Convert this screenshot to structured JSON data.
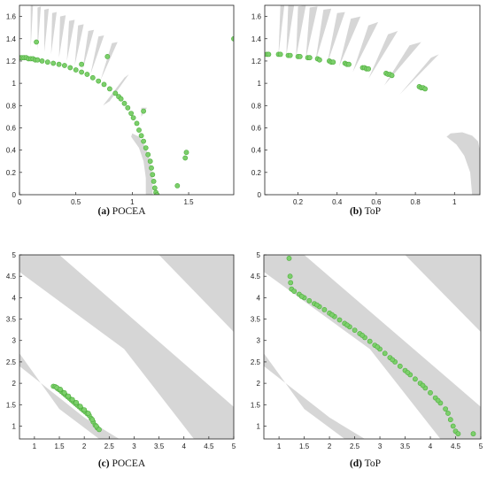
{
  "colors": {
    "feasible_region": "#d6d6d6",
    "points_fill": "#7ccf6b",
    "points_edge": "#4fae3f",
    "axes": "#222222"
  },
  "chart_data": [
    {
      "panel": "a",
      "type": "scatter",
      "caption_label": "(a)",
      "caption_text": "POCEA",
      "xlim": [
        0,
        1.9
      ],
      "ylim": [
        0,
        1.7
      ],
      "xticks": [
        0,
        0.5,
        1,
        1.5
      ],
      "xtick_labels": [
        "0",
        "0.5",
        "1",
        "1.5"
      ],
      "yticks": [
        0,
        0.2,
        0.4,
        0.6,
        0.8,
        1,
        1.2,
        1.4,
        1.6
      ],
      "ytick_labels": [
        "0",
        "0.2",
        "0.4",
        "0.6",
        "0.8",
        "1",
        "1.2",
        "1.4",
        "1.6"
      ],
      "regions": [
        [
          [
            0.1,
            1.7
          ],
          [
            0.12,
            1.7
          ],
          [
            0.1,
            1.32
          ]
        ],
        [
          [
            0.16,
            1.68
          ],
          [
            0.19,
            1.69
          ],
          [
            0.16,
            1.3
          ]
        ],
        [
          [
            0.22,
            1.66
          ],
          [
            0.26,
            1.67
          ],
          [
            0.22,
            1.28
          ]
        ],
        [
          [
            0.29,
            1.63
          ],
          [
            0.33,
            1.64
          ],
          [
            0.28,
            1.26
          ]
        ],
        [
          [
            0.36,
            1.6
          ],
          [
            0.41,
            1.61
          ],
          [
            0.35,
            1.23
          ]
        ],
        [
          [
            0.44,
            1.56
          ],
          [
            0.49,
            1.57
          ],
          [
            0.42,
            1.2
          ]
        ],
        [
          [
            0.52,
            1.52
          ],
          [
            0.57,
            1.53
          ],
          [
            0.49,
            1.16
          ]
        ],
        [
          [
            0.61,
            1.47
          ],
          [
            0.66,
            1.48
          ],
          [
            0.56,
            1.12
          ]
        ],
        [
          [
            0.7,
            1.42
          ],
          [
            0.75,
            1.43
          ],
          [
            0.63,
            1.08
          ]
        ],
        [
          [
            0.82,
            1.36
          ],
          [
            0.87,
            1.37
          ],
          [
            0.72,
            1.03
          ]
        ],
        [
          [
            0.93,
            1.05
          ],
          [
            0.97,
            1.08
          ],
          [
            0.8,
            0.84
          ],
          [
            0.74,
            0.8
          ]
        ],
        [
          [
            1.08,
            0.78
          ],
          [
            1.13,
            0.78
          ],
          [
            1.08,
            0.7
          ]
        ],
        [
          [
            1.0,
            0.55
          ],
          [
            1.06,
            0.52
          ],
          [
            1.12,
            0.42
          ],
          [
            1.16,
            0.3
          ],
          [
            1.18,
            0.15
          ],
          [
            1.18,
            0.0
          ],
          [
            1.12,
            0.0
          ],
          [
            1.12,
            0.15
          ],
          [
            1.1,
            0.3
          ],
          [
            1.06,
            0.42
          ],
          [
            0.99,
            0.52
          ]
        ]
      ],
      "points": [
        [
          0.0,
          1.23
        ],
        [
          0.02,
          1.23
        ],
        [
          0.04,
          1.23
        ],
        [
          0.06,
          1.23
        ],
        [
          0.08,
          1.22
        ],
        [
          0.1,
          1.22
        ],
        [
          0.12,
          1.22
        ],
        [
          0.14,
          1.21
        ],
        [
          0.16,
          1.21
        ],
        [
          0.2,
          1.2
        ],
        [
          0.25,
          1.19
        ],
        [
          0.3,
          1.18
        ],
        [
          0.35,
          1.17
        ],
        [
          0.4,
          1.16
        ],
        [
          0.45,
          1.14
        ],
        [
          0.5,
          1.12
        ],
        [
          0.55,
          1.1
        ],
        [
          0.6,
          1.08
        ],
        [
          0.65,
          1.05
        ],
        [
          0.7,
          1.02
        ],
        [
          0.75,
          0.99
        ],
        [
          0.8,
          0.95
        ],
        [
          0.85,
          0.91
        ],
        [
          0.88,
          0.88
        ],
        [
          0.9,
          0.86
        ],
        [
          0.93,
          0.82
        ],
        [
          0.96,
          0.78
        ],
        [
          0.99,
          0.73
        ],
        [
          1.01,
          0.69
        ],
        [
          1.04,
          0.64
        ],
        [
          1.06,
          0.58
        ],
        [
          1.08,
          0.53
        ],
        [
          1.1,
          0.48
        ],
        [
          1.12,
          0.42
        ],
        [
          1.14,
          0.36
        ],
        [
          1.16,
          0.3
        ],
        [
          1.17,
          0.24
        ],
        [
          1.18,
          0.18
        ],
        [
          1.19,
          0.12
        ],
        [
          1.2,
          0.06
        ],
        [
          1.21,
          0.02
        ],
        [
          1.22,
          0.0
        ],
        [
          0.15,
          1.37
        ],
        [
          0.55,
          1.17
        ],
        [
          0.78,
          1.24
        ],
        [
          1.1,
          0.75
        ],
        [
          1.48,
          0.38
        ],
        [
          1.47,
          0.33
        ],
        [
          1.4,
          0.08
        ],
        [
          1.9,
          1.4
        ]
      ]
    },
    {
      "panel": "b",
      "type": "scatter",
      "caption_label": "(b)",
      "caption_text": "ToP",
      "xlim": [
        0.03,
        1.13
      ],
      "ylim": [
        0,
        1.7
      ],
      "xticks": [
        0.2,
        0.4,
        0.6,
        0.8,
        1
      ],
      "xtick_labels": [
        "0.2",
        "0.4",
        "0.6",
        "0.8",
        "1"
      ],
      "yticks": [
        0,
        0.2,
        0.4,
        0.6,
        0.8,
        1,
        1.2,
        1.4,
        1.6
      ],
      "ytick_labels": [
        "0",
        "0.2",
        "0.4",
        "0.6",
        "0.8",
        "1",
        "1.2",
        "1.4",
        "1.6"
      ],
      "regions": [
        [
          [
            0.11,
            1.7
          ],
          [
            0.13,
            1.7
          ],
          [
            0.1,
            1.25
          ]
        ],
        [
          [
            0.15,
            1.7
          ],
          [
            0.18,
            1.7
          ],
          [
            0.14,
            1.24
          ]
        ],
        [
          [
            0.2,
            1.69
          ],
          [
            0.24,
            1.7
          ],
          [
            0.19,
            1.23
          ]
        ],
        [
          [
            0.26,
            1.68
          ],
          [
            0.3,
            1.69
          ],
          [
            0.24,
            1.22
          ]
        ],
        [
          [
            0.33,
            1.66
          ],
          [
            0.37,
            1.67
          ],
          [
            0.29,
            1.2
          ]
        ],
        [
          [
            0.4,
            1.63
          ],
          [
            0.44,
            1.64
          ],
          [
            0.35,
            1.18
          ]
        ],
        [
          [
            0.47,
            1.58
          ],
          [
            0.52,
            1.6
          ],
          [
            0.41,
            1.15
          ]
        ],
        [
          [
            0.56,
            1.52
          ],
          [
            0.61,
            1.55
          ],
          [
            0.48,
            1.1
          ]
        ],
        [
          [
            0.66,
            1.44
          ],
          [
            0.71,
            1.47
          ],
          [
            0.56,
            1.04
          ]
        ],
        [
          [
            0.77,
            1.34
          ],
          [
            0.83,
            1.37
          ],
          [
            0.64,
            0.98
          ]
        ],
        [
          [
            0.88,
            1.23
          ],
          [
            0.92,
            1.26
          ],
          [
            0.72,
            0.9
          ]
        ],
        [
          [
            0.98,
            0.55
          ],
          [
            1.04,
            0.56
          ],
          [
            1.09,
            0.53
          ],
          [
            1.12,
            0.48
          ],
          [
            1.13,
            0.4
          ],
          [
            1.13,
            0.0
          ],
          [
            1.09,
            0.0
          ],
          [
            1.08,
            0.2
          ],
          [
            1.05,
            0.35
          ],
          [
            1.01,
            0.45
          ],
          [
            0.96,
            0.52
          ]
        ]
      ],
      "points": [
        [
          0.04,
          1.26
        ],
        [
          0.05,
          1.26
        ],
        [
          0.1,
          1.26
        ],
        [
          0.11,
          1.26
        ],
        [
          0.15,
          1.25
        ],
        [
          0.16,
          1.25
        ],
        [
          0.2,
          1.24
        ],
        [
          0.21,
          1.24
        ],
        [
          0.25,
          1.23
        ],
        [
          0.26,
          1.23
        ],
        [
          0.3,
          1.22
        ],
        [
          0.31,
          1.21
        ],
        [
          0.36,
          1.2
        ],
        [
          0.37,
          1.19
        ],
        [
          0.38,
          1.19
        ],
        [
          0.44,
          1.18
        ],
        [
          0.45,
          1.17
        ],
        [
          0.46,
          1.17
        ],
        [
          0.53,
          1.14
        ],
        [
          0.54,
          1.14
        ],
        [
          0.55,
          1.13
        ],
        [
          0.56,
          1.13
        ],
        [
          0.65,
          1.09
        ],
        [
          0.66,
          1.08
        ],
        [
          0.67,
          1.08
        ],
        [
          0.68,
          1.07
        ],
        [
          0.82,
          0.97
        ],
        [
          0.83,
          0.96
        ],
        [
          0.84,
          0.96
        ],
        [
          0.85,
          0.95
        ]
      ]
    },
    {
      "panel": "c",
      "type": "scatter",
      "caption_label": "(c)",
      "caption_text": "POCEA",
      "xlim": [
        0.7,
        5
      ],
      "ylim": [
        0.7,
        5
      ],
      "xticks": [
        1,
        1.5,
        2,
        2.5,
        3,
        3.5,
        4,
        4.5,
        5
      ],
      "xtick_labels": [
        "1",
        "1.5",
        "2",
        "2.5",
        "3",
        "3.5",
        "4",
        "4.5",
        "5"
      ],
      "yticks": [
        1,
        1.5,
        2,
        2.5,
        3,
        3.5,
        4,
        4.5,
        5
      ],
      "ytick_labels": [
        "1",
        "1.5",
        "2",
        "2.5",
        "3",
        "3.5",
        "4",
        "4.5",
        "5"
      ],
      "regions": [
        [
          [
            0.7,
            5
          ],
          [
            1.5,
            5
          ],
          [
            5,
            1.45
          ],
          [
            5,
            0.7
          ],
          [
            4.2,
            0.7
          ],
          [
            2.8,
            2.8
          ],
          [
            0.7,
            4.6
          ]
        ],
        [
          [
            3.5,
            5
          ],
          [
            5,
            5
          ],
          [
            5,
            3.2
          ]
        ],
        [
          [
            0.7,
            2.7
          ],
          [
            0.7,
            2.4
          ],
          [
            2.0,
            1.2
          ],
          [
            2.7,
            0.7
          ],
          [
            2.3,
            0.7
          ],
          [
            1.5,
            1.4
          ]
        ]
      ],
      "points": [
        [
          1.38,
          1.93
        ],
        [
          1.42,
          1.92
        ],
        [
          1.46,
          1.88
        ],
        [
          1.5,
          1.85
        ],
        [
          1.54,
          1.81
        ],
        [
          1.58,
          1.77
        ],
        [
          1.62,
          1.73
        ],
        [
          1.66,
          1.69
        ],
        [
          1.7,
          1.65
        ],
        [
          1.74,
          1.61
        ],
        [
          1.78,
          1.57
        ],
        [
          1.82,
          1.53
        ],
        [
          1.86,
          1.49
        ],
        [
          1.9,
          1.45
        ],
        [
          1.94,
          1.41
        ],
        [
          1.98,
          1.37
        ],
        [
          2.02,
          1.33
        ],
        [
          2.06,
          1.29
        ],
        [
          2.1,
          1.25
        ],
        [
          2.14,
          1.18
        ],
        [
          2.18,
          1.1
        ],
        [
          2.22,
          1.02
        ],
        [
          2.26,
          0.96
        ],
        [
          2.3,
          0.92
        ],
        [
          1.45,
          1.9
        ],
        [
          1.52,
          1.86
        ],
        [
          1.6,
          1.78
        ],
        [
          1.68,
          1.7
        ],
        [
          1.76,
          1.62
        ],
        [
          1.84,
          1.55
        ],
        [
          1.92,
          1.46
        ],
        [
          2.0,
          1.38
        ],
        [
          2.08,
          1.3
        ],
        [
          2.16,
          1.15
        ],
        [
          2.24,
          1.0
        ]
      ]
    },
    {
      "panel": "d",
      "type": "scatter",
      "caption_label": "(d)",
      "caption_text": "ToP",
      "xlim": [
        0.7,
        5
      ],
      "ylim": [
        0.7,
        5
      ],
      "xticks": [
        1,
        1.5,
        2,
        2.5,
        3,
        3.5,
        4,
        4.5,
        5
      ],
      "xtick_labels": [
        "1",
        "1.5",
        "2",
        "2.5",
        "3",
        "3.5",
        "4",
        "4.5",
        "5"
      ],
      "yticks": [
        1,
        1.5,
        2,
        2.5,
        3,
        3.5,
        4,
        4.5,
        5
      ],
      "ytick_labels": [
        "1",
        "1.5",
        "2",
        "2.5",
        "3",
        "3.5",
        "4",
        "4.5",
        "5"
      ],
      "regions": [
        [
          [
            0.7,
            5
          ],
          [
            1.5,
            5
          ],
          [
            5,
            1.45
          ],
          [
            5,
            0.7
          ],
          [
            4.2,
            0.7
          ],
          [
            2.8,
            2.8
          ],
          [
            0.7,
            4.6
          ]
        ],
        [
          [
            3.5,
            5
          ],
          [
            5,
            5
          ],
          [
            5,
            3.2
          ]
        ],
        [
          [
            0.7,
            2.7
          ],
          [
            0.7,
            2.4
          ],
          [
            2.0,
            1.2
          ],
          [
            2.7,
            0.7
          ],
          [
            2.3,
            0.7
          ],
          [
            1.5,
            1.4
          ]
        ]
      ],
      "points": [
        [
          1.2,
          4.92
        ],
        [
          1.22,
          4.5
        ],
        [
          1.23,
          4.35
        ],
        [
          1.25,
          4.2
        ],
        [
          1.3,
          4.15
        ],
        [
          1.4,
          4.08
        ],
        [
          1.5,
          4.0
        ],
        [
          1.6,
          3.93
        ],
        [
          1.7,
          3.86
        ],
        [
          1.8,
          3.79
        ],
        [
          1.9,
          3.72
        ],
        [
          2.0,
          3.64
        ],
        [
          2.1,
          3.56
        ],
        [
          2.2,
          3.48
        ],
        [
          2.3,
          3.4
        ],
        [
          2.4,
          3.32
        ],
        [
          2.5,
          3.24
        ],
        [
          2.6,
          3.16
        ],
        [
          2.7,
          3.07
        ],
        [
          2.8,
          2.98
        ],
        [
          2.9,
          2.89
        ],
        [
          3.0,
          2.8
        ],
        [
          3.1,
          2.7
        ],
        [
          3.2,
          2.6
        ],
        [
          3.3,
          2.5
        ],
        [
          3.4,
          2.4
        ],
        [
          3.5,
          2.3
        ],
        [
          3.6,
          2.2
        ],
        [
          3.7,
          2.1
        ],
        [
          3.8,
          2.0
        ],
        [
          3.9,
          1.89
        ],
        [
          4.0,
          1.78
        ],
        [
          4.1,
          1.66
        ],
        [
          4.2,
          1.54
        ],
        [
          4.3,
          1.4
        ],
        [
          4.35,
          1.3
        ],
        [
          4.4,
          1.15
        ],
        [
          4.45,
          1.0
        ],
        [
          4.5,
          0.88
        ],
        [
          4.55,
          0.82
        ],
        [
          4.85,
          0.82
        ],
        [
          1.45,
          4.03
        ],
        [
          1.75,
          3.83
        ],
        [
          2.05,
          3.6
        ],
        [
          2.35,
          3.36
        ],
        [
          2.65,
          3.12
        ],
        [
          2.95,
          2.85
        ],
        [
          3.25,
          2.55
        ],
        [
          3.55,
          2.25
        ],
        [
          3.85,
          1.95
        ],
        [
          4.15,
          1.6
        ]
      ]
    }
  ]
}
